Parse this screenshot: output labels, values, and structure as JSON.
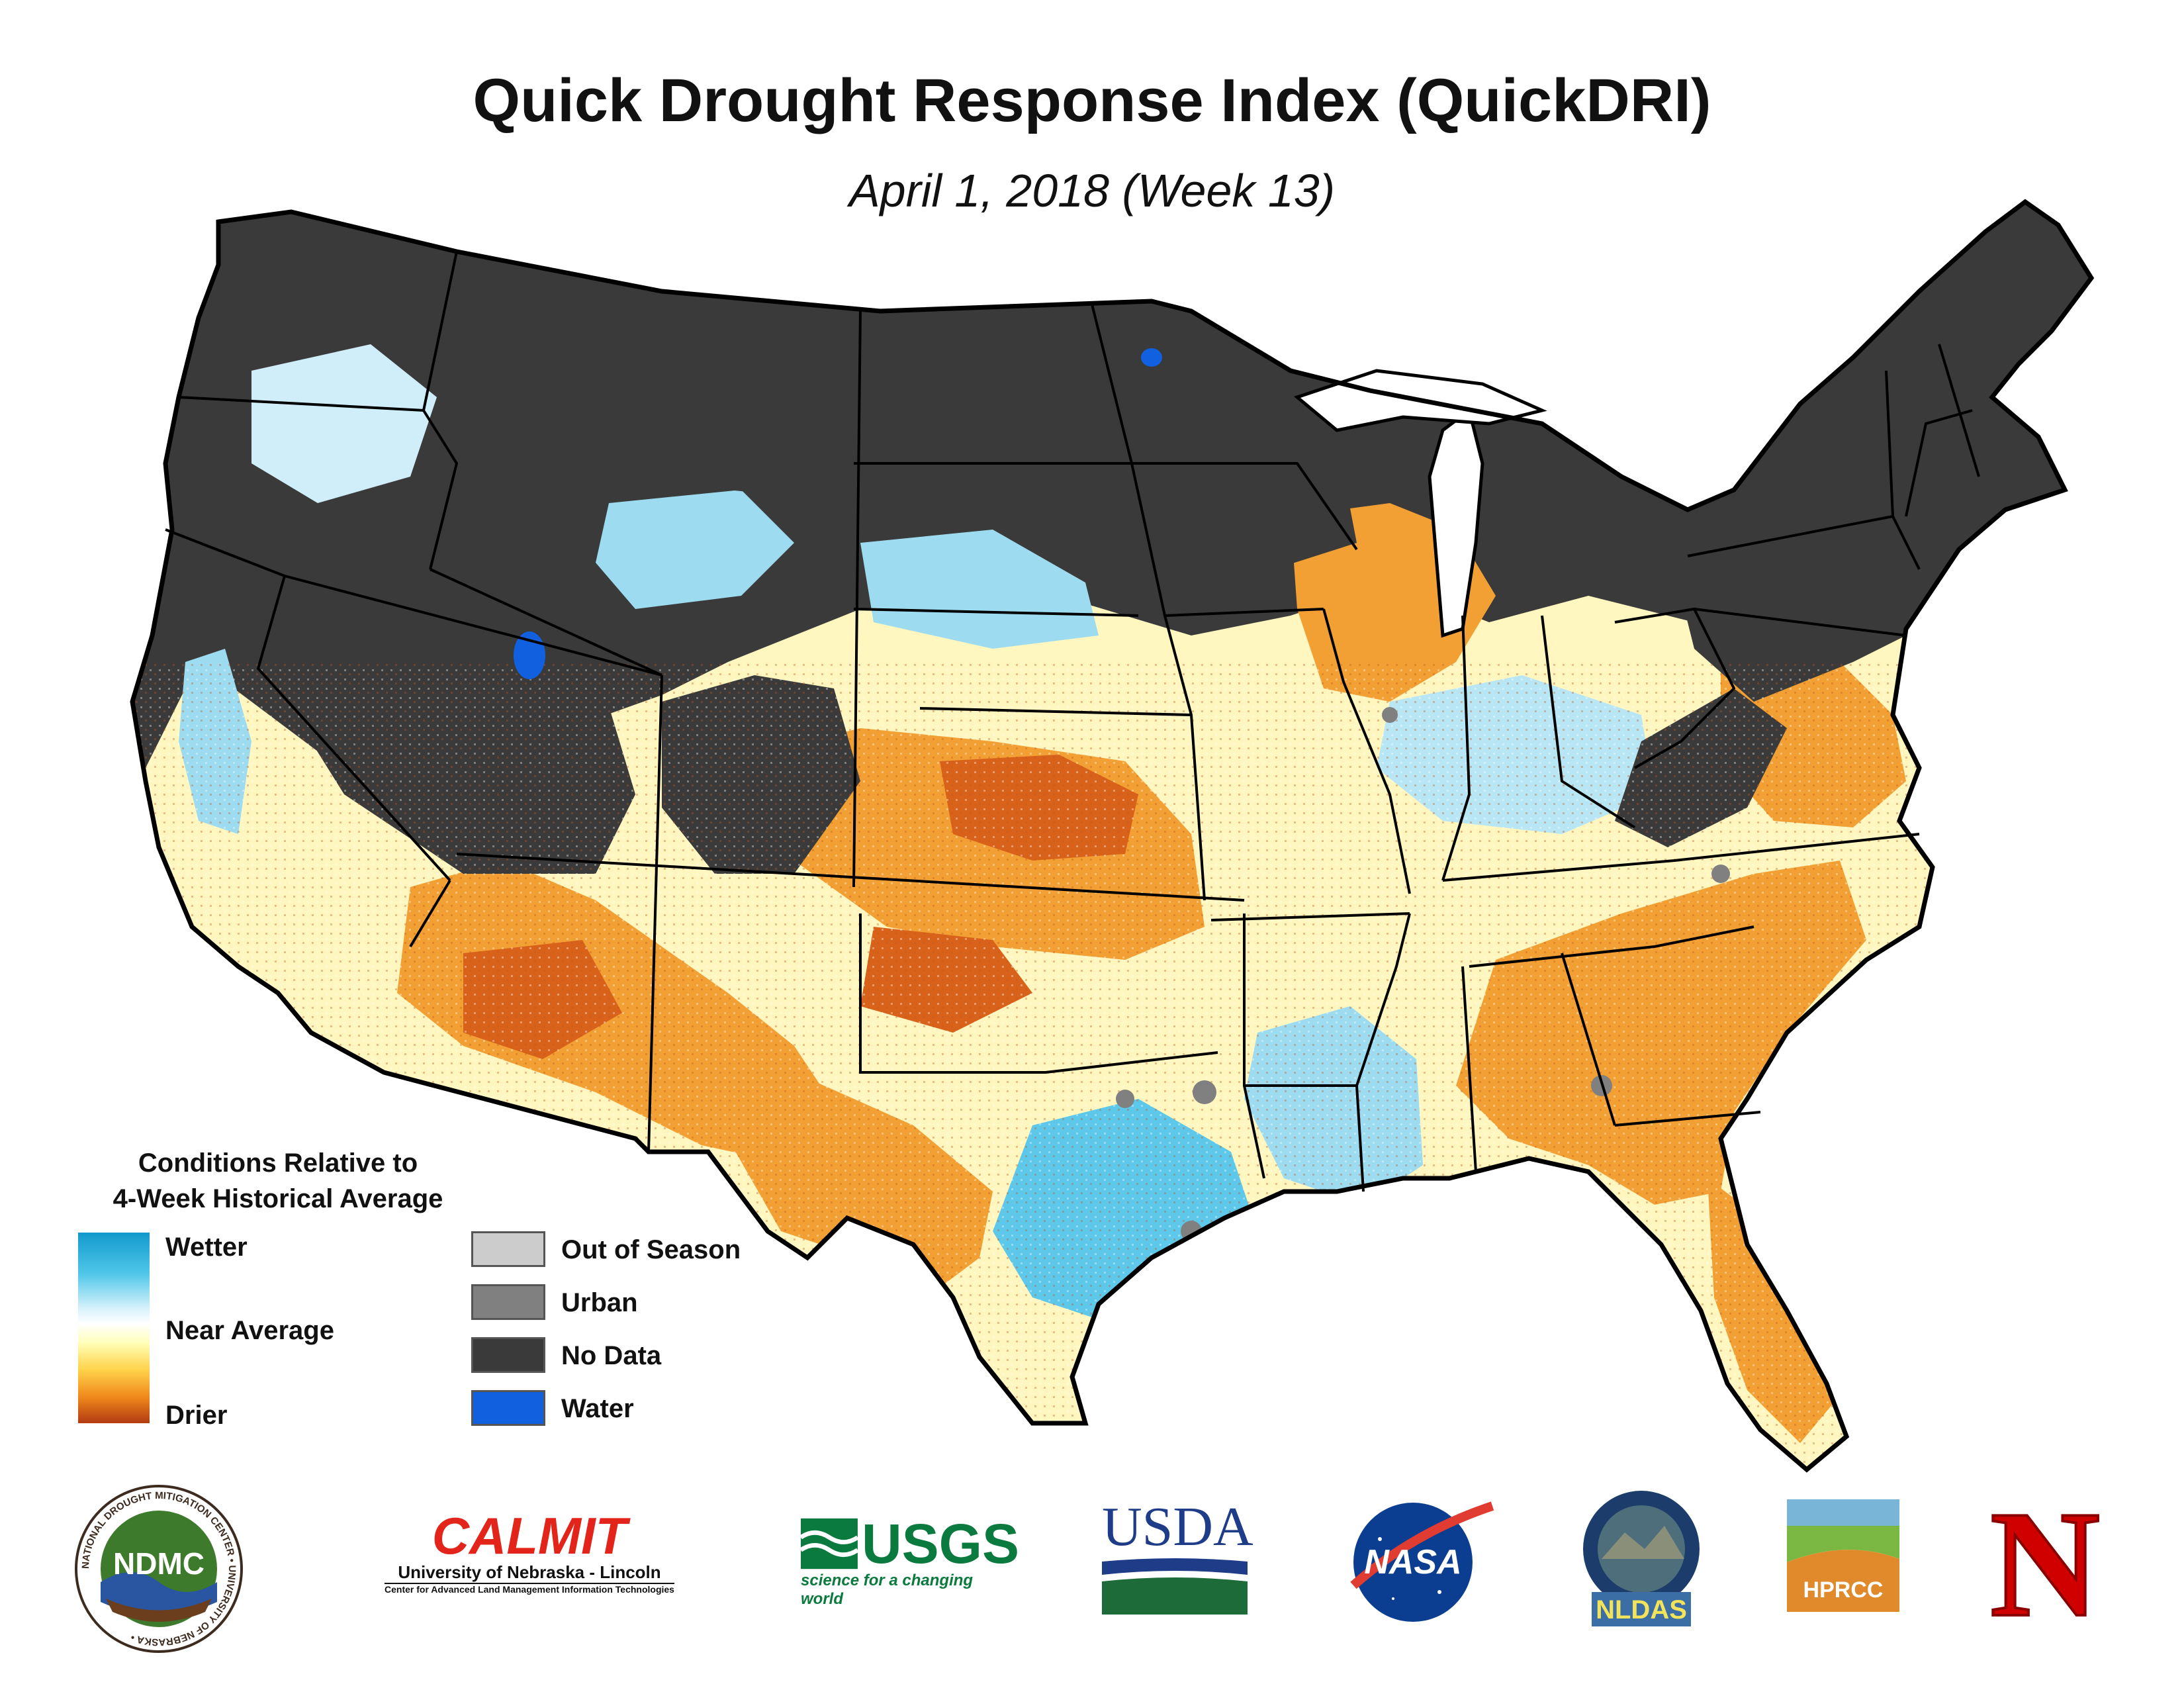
{
  "title": "Quick Drought Response Index (QuickDRI)",
  "subtitle": "April 1, 2018 (Week 13)",
  "legend": {
    "title_line1": "Conditions Relative to",
    "title_line2": "4-Week Historical Average",
    "ramp_labels": {
      "wetter": "Wetter",
      "near_average": "Near Average",
      "drier": "Drier"
    },
    "ramp_colors": [
      "#1199cc",
      "#52c8ea",
      "#ffffff",
      "#ffffb8",
      "#ffd24a",
      "#f08a1c",
      "#b33a12"
    ],
    "categories": [
      {
        "label": "Out of Season",
        "color": "#cccccc"
      },
      {
        "label": "Urban",
        "color": "#808080"
      },
      {
        "label": "No Data",
        "color": "#3a3a3a"
      },
      {
        "label": "Water",
        "color": "#1160e0"
      }
    ]
  },
  "map_colors": {
    "no_data": "#3a3a3a",
    "state_border": "#000000",
    "wetter": "#5ec8ea",
    "near_average": "#fff6c0",
    "drier": "#f2a033",
    "much_drier": "#d9621a",
    "water": "#1160e0",
    "urban": "#808080"
  },
  "logos": {
    "ndmc": {
      "ring_text": "NATIONAL DROUGHT MITIGATION CENTER • UNIVERSITY OF NEBRASKA •",
      "center_text": "NDMC"
    },
    "calmit": {
      "name": "CALMIT",
      "line1": "University of Nebraska - Lincoln",
      "line2": "Center for Advanced Land Management Information Technologies"
    },
    "usgs": {
      "name": "USGS",
      "tagline": "science for a changing world"
    },
    "usda": {
      "name": "USDA"
    },
    "nasa": {
      "name": "NASA"
    },
    "nldas": {
      "name": "NLDAS"
    },
    "hprcc": {
      "name": "HPRCC"
    },
    "unl": {
      "name": "N"
    }
  }
}
